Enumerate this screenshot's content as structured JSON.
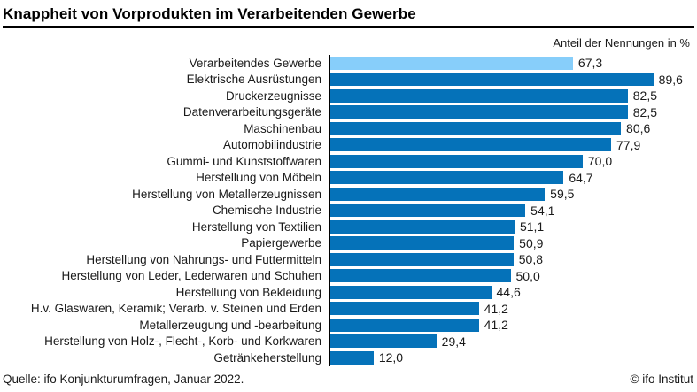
{
  "header": {
    "title": "Knappheit von Vorprodukten im Verarbeitenden Gewerbe",
    "subtitle": "Anteil der Nennungen in %"
  },
  "chart_data": {
    "type": "bar",
    "orientation": "horizontal",
    "title": "Knappheit von Vorprodukten im Verarbeitenden Gewerbe",
    "xlabel": "Anteil der Nennungen in %",
    "xlim": [
      0,
      100
    ],
    "grid": false,
    "legend": false,
    "highlight_index": 0,
    "colors": {
      "bar": "#0572b9",
      "highlight": "#87cefa",
      "axis": "#000000"
    },
    "categories": [
      "Verarbeitendes Gewerbe",
      "Elektrische Ausrüstungen",
      "Druckerzeugnisse",
      "Datenverarbeitungsgeräte",
      "Maschinenbau",
      "Automobilindustrie",
      "Gummi- und Kunststoffwaren",
      "Herstellung von Möbeln",
      "Herstellung von Metallerzeugnissen",
      "Chemische Industrie",
      "Herstellung von Textilien",
      "Papiergewerbe",
      "Herstellung von Nahrungs- und Futtermitteln",
      "Herstellung von Leder, Lederwaren und Schuhen",
      "Herstellung von Bekleidung",
      "H.v. Glaswaren, Keramik; Verarb. v. Steinen und Erden",
      "Metallerzeugung und -bearbeitung",
      "Herstellung von Holz-, Flecht-, Korb- und Korkwaren",
      "Getränkeherstellung"
    ],
    "values": [
      67.3,
      89.6,
      82.5,
      82.5,
      80.6,
      77.9,
      70.0,
      64.7,
      59.5,
      54.1,
      51.1,
      50.9,
      50.8,
      50.0,
      44.6,
      41.2,
      41.2,
      29.4,
      12.0
    ],
    "value_labels": [
      "67,3",
      "89,6",
      "82,5",
      "82,5",
      "80,6",
      "77,9",
      "70,0",
      "64,7",
      "59,5",
      "54,1",
      "51,1",
      "50,9",
      "50,8",
      "50,0",
      "44,6",
      "41,2",
      "41,2",
      "29,4",
      "12,0"
    ]
  },
  "footer": {
    "source": "Quelle: ifo Konjunkturumfragen, Januar 2022.",
    "copyright": "© ifo Institut"
  }
}
